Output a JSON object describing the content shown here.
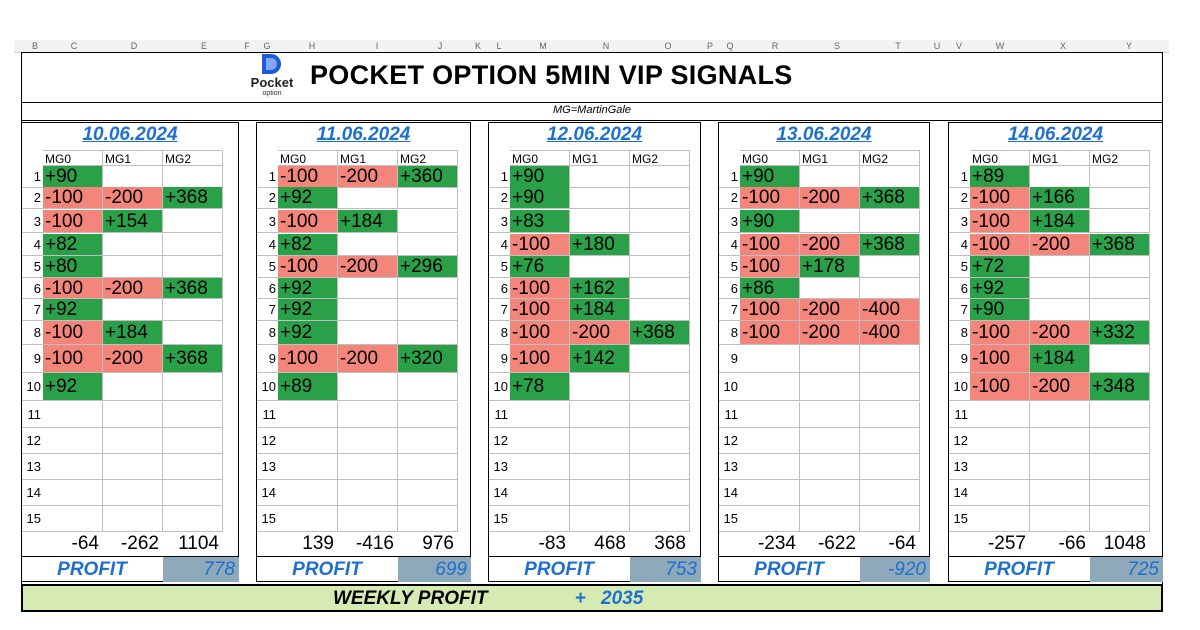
{
  "column_headers": [
    "B",
    "C",
    "D",
    "E",
    "F",
    "G",
    "H",
    "I",
    "J",
    "K",
    "L",
    "M",
    "N",
    "O",
    "P",
    "Q",
    "R",
    "S",
    "T",
    "U",
    "V",
    "W",
    "X",
    "Y"
  ],
  "logo": {
    "name": "Pocket",
    "sub": "option",
    "color": "#1f5ad6"
  },
  "title": "POCKET OPTION 5MIN VIP SIGNALS",
  "subtitle": "MG=MartinGale",
  "colors": {
    "win": "#2aa148",
    "loss": "#f4857a",
    "accent": "#1f6fd1",
    "profit_box": "#8ea9b9",
    "weekly_bg": "#d6eab3"
  },
  "days": [
    {
      "date": "10.06.2024",
      "headers": [
        "MG0",
        "MG1",
        "MG2"
      ],
      "rows": [
        [
          "+90",
          "",
          ""
        ],
        [
          "-100",
          "-200",
          "+368"
        ],
        [
          "-100",
          "+154",
          ""
        ],
        [
          "+82",
          "",
          ""
        ],
        [
          "+80",
          "",
          ""
        ],
        [
          "-100",
          "-200",
          "+368"
        ],
        [
          "+92",
          "",
          ""
        ],
        [
          "-100",
          "+184",
          ""
        ],
        [
          "-100",
          "-200",
          "+368"
        ],
        [
          "+92",
          "",
          ""
        ],
        [
          "",
          "",
          ""
        ],
        [
          "",
          "",
          ""
        ],
        [
          "",
          "",
          ""
        ],
        [
          "",
          "",
          ""
        ],
        [
          "",
          "",
          ""
        ]
      ],
      "totals": [
        "-64",
        "-262",
        "1104"
      ],
      "profit_label": "PROFIT",
      "profit": "778"
    },
    {
      "date": "11.06.2024",
      "headers": [
        "MG0",
        "MG1",
        "MG2"
      ],
      "rows": [
        [
          "-100",
          "-200",
          "+360"
        ],
        [
          "+92",
          "",
          ""
        ],
        [
          "-100",
          "+184",
          ""
        ],
        [
          "+82",
          "",
          ""
        ],
        [
          "-100",
          "-200",
          "+296"
        ],
        [
          "+92",
          "",
          ""
        ],
        [
          "+92",
          "",
          ""
        ],
        [
          "+92",
          "",
          ""
        ],
        [
          "-100",
          "-200",
          "+320"
        ],
        [
          "+89",
          "",
          ""
        ],
        [
          "",
          "",
          ""
        ],
        [
          "",
          "",
          ""
        ],
        [
          "",
          "",
          ""
        ],
        [
          "",
          "",
          ""
        ],
        [
          "",
          "",
          ""
        ]
      ],
      "totals": [
        "139",
        "-416",
        "976"
      ],
      "profit_label": "PROFIT",
      "profit": "699"
    },
    {
      "date": "12.06.2024",
      "headers": [
        "MG0",
        "MG1",
        "MG2"
      ],
      "rows": [
        [
          "+90",
          "",
          ""
        ],
        [
          "+90",
          "",
          ""
        ],
        [
          "+83",
          "",
          ""
        ],
        [
          "-100",
          "+180",
          ""
        ],
        [
          "+76",
          "",
          ""
        ],
        [
          "-100",
          "+162",
          ""
        ],
        [
          "-100",
          "+184",
          ""
        ],
        [
          "-100",
          "-200",
          "+368"
        ],
        [
          "-100",
          "+142",
          ""
        ],
        [
          "+78",
          "",
          ""
        ],
        [
          "",
          "",
          ""
        ],
        [
          "",
          "",
          ""
        ],
        [
          "",
          "",
          ""
        ],
        [
          "",
          "",
          ""
        ],
        [
          "",
          "",
          ""
        ]
      ],
      "totals": [
        "-83",
        "468",
        "368"
      ],
      "profit_label": "PROFIT",
      "profit": "753"
    },
    {
      "date": "13.06.2024",
      "headers": [
        "MG0",
        "MG1",
        "MG2"
      ],
      "rows": [
        [
          "+90",
          "",
          ""
        ],
        [
          "-100",
          "-200",
          "+368"
        ],
        [
          "+90",
          "",
          ""
        ],
        [
          "-100",
          "-200",
          "+368"
        ],
        [
          "-100",
          "+178",
          ""
        ],
        [
          "+86",
          "",
          ""
        ],
        [
          "-100",
          "-200",
          "-400"
        ],
        [
          "-100",
          "-200",
          "-400"
        ],
        [
          "",
          "",
          ""
        ],
        [
          "",
          "",
          ""
        ],
        [
          "",
          "",
          ""
        ],
        [
          "",
          "",
          ""
        ],
        [
          "",
          "",
          ""
        ],
        [
          "",
          "",
          ""
        ],
        [
          "",
          "",
          ""
        ]
      ],
      "totals": [
        "-234",
        "-622",
        "-64"
      ],
      "profit_label": "PROFIT",
      "profit": "-920"
    },
    {
      "date": "14.06.2024",
      "headers": [
        "MG0",
        "MG1",
        "MG2"
      ],
      "rows": [
        [
          "+89",
          "",
          ""
        ],
        [
          "-100",
          "+166",
          ""
        ],
        [
          "-100",
          "+184",
          ""
        ],
        [
          "-100",
          "-200",
          "+368"
        ],
        [
          "+72",
          "",
          ""
        ],
        [
          "+92",
          "",
          ""
        ],
        [
          "+90",
          "",
          ""
        ],
        [
          "-100",
          "-200",
          "+332"
        ],
        [
          "-100",
          "+184",
          ""
        ],
        [
          "-100",
          "-200",
          "+348"
        ],
        [
          "",
          "",
          ""
        ],
        [
          "",
          "",
          ""
        ],
        [
          "",
          "",
          ""
        ],
        [
          "",
          "",
          ""
        ],
        [
          "",
          "",
          ""
        ]
      ],
      "totals": [
        "-257",
        "-66",
        "1048"
      ],
      "profit_label": "PROFIT",
      "profit": "725"
    }
  ],
  "weekly": {
    "label": "WEEKLY PROFIT",
    "sign": "+",
    "value": "2035"
  }
}
